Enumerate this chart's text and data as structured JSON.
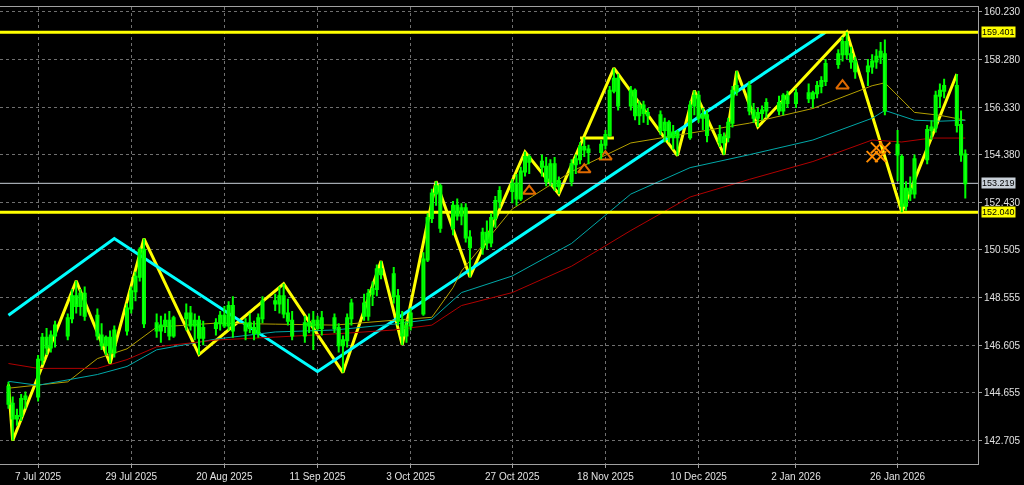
{
  "chart_data": {
    "type": "candlestick",
    "color": "#00ff00",
    "x": [
      "2025-06-30",
      "2025-07-01",
      "2025-07-02",
      "2025-07-03",
      "2025-07-04",
      "2025-07-07",
      "2025-07-08",
      "2025-07-09",
      "2025-07-10",
      "2025-07-11",
      "2025-07-14",
      "2025-07-15",
      "2025-07-16",
      "2025-07-17",
      "2025-07-18",
      "2025-07-21",
      "2025-07-22",
      "2025-07-23",
      "2025-07-24",
      "2025-07-25",
      "2025-07-28",
      "2025-07-29",
      "2025-07-30",
      "2025-07-31",
      "2025-08-01",
      "2025-08-04",
      "2025-08-05",
      "2025-08-06",
      "2025-08-07",
      "2025-08-08",
      "2025-08-11",
      "2025-08-12",
      "2025-08-13",
      "2025-08-14",
      "2025-08-15",
      "2025-08-18",
      "2025-08-19",
      "2025-08-20",
      "2025-08-21",
      "2025-08-22",
      "2025-08-25",
      "2025-08-26",
      "2025-08-27",
      "2025-08-28",
      "2025-08-29",
      "2025-09-01",
      "2025-09-02",
      "2025-09-03",
      "2025-09-04",
      "2025-09-05",
      "2025-09-08",
      "2025-09-09",
      "2025-09-10",
      "2025-09-11",
      "2025-09-12",
      "2025-09-15",
      "2025-09-16",
      "2025-09-17",
      "2025-09-18",
      "2025-09-19",
      "2025-09-22",
      "2025-09-23",
      "2025-09-24",
      "2025-09-25",
      "2025-09-26",
      "2025-09-29",
      "2025-09-30",
      "2025-10-01",
      "2025-10-02",
      "2025-10-03",
      "2025-10-06",
      "2025-10-07",
      "2025-10-08",
      "2025-10-09",
      "2025-10-10",
      "2025-10-13",
      "2025-10-14",
      "2025-10-15",
      "2025-10-16",
      "2025-10-17",
      "2025-10-20",
      "2025-10-21",
      "2025-10-22",
      "2025-10-23",
      "2025-10-24",
      "2025-10-27",
      "2025-10-28",
      "2025-10-29",
      "2025-10-30",
      "2025-10-31",
      "2025-11-03",
      "2025-11-04",
      "2025-11-05",
      "2025-11-06",
      "2025-11-07",
      "2025-11-10",
      "2025-11-11",
      "2025-11-12",
      "2025-11-13",
      "2025-11-14",
      "2025-11-17",
      "2025-11-18",
      "2025-11-19",
      "2025-11-20",
      "2025-11-21",
      "2025-11-24",
      "2025-11-25",
      "2025-11-26",
      "2025-11-27",
      "2025-11-28",
      "2025-12-01",
      "2025-12-02",
      "2025-12-03",
      "2025-12-04",
      "2025-12-05",
      "2025-12-08",
      "2025-12-09",
      "2025-12-10",
      "2025-12-11",
      "2025-12-12",
      "2025-12-15",
      "2025-12-16",
      "2025-12-17",
      "2025-12-18",
      "2025-12-19",
      "2025-12-22",
      "2025-12-23",
      "2025-12-24",
      "2025-12-25",
      "2025-12-26",
      "2025-12-29",
      "2025-12-30",
      "2025-12-31",
      "2026-01-02",
      "2026-01-05",
      "2026-01-06",
      "2026-01-07",
      "2026-01-08",
      "2026-01-09",
      "2026-01-12",
      "2026-01-13",
      "2026-01-14",
      "2026-01-15",
      "2026-01-16",
      "2026-01-19",
      "2026-01-20",
      "2026-01-21",
      "2026-01-22",
      "2026-01-23",
      "2026-01-26",
      "2026-01-27",
      "2026-01-28",
      "2026-01-29",
      "2026-01-30",
      "2026-02-02",
      "2026-02-03",
      "2026-02-04",
      "2026-02-05",
      "2026-02-06",
      "2026-02-09",
      "2026-02-10",
      "2026-02-11"
    ],
    "ohlc": [
      [
        144.9,
        145.1,
        144.0,
        144.2
      ],
      [
        144.2,
        144.5,
        142.7,
        143.6
      ],
      [
        143.6,
        144.0,
        143.3,
        143.7
      ],
      [
        143.7,
        144.6,
        143.5,
        144.4
      ],
      [
        144.4,
        144.7,
        144.0,
        144.5
      ],
      [
        144.5,
        146.2,
        144.3,
        146.0
      ],
      [
        146.0,
        147.1,
        145.8,
        146.9
      ],
      [
        146.9,
        147.3,
        146.2,
        146.5
      ],
      [
        146.5,
        147.2,
        146.3,
        147.0
      ],
      [
        147.0,
        147.6,
        146.5,
        147.4
      ],
      [
        147.0,
        147.9,
        146.8,
        147.7
      ],
      [
        147.7,
        148.9,
        147.5,
        148.6
      ],
      [
        148.6,
        149.23,
        147.9,
        148.2
      ],
      [
        148.2,
        148.9,
        147.8,
        148.7
      ],
      [
        148.7,
        149.0,
        147.6,
        147.8
      ],
      [
        147.8,
        148.1,
        146.8,
        147.0
      ],
      [
        147.0,
        147.5,
        146.4,
        146.6
      ],
      [
        146.6,
        147.0,
        146.2,
        146.9
      ],
      [
        146.9,
        147.2,
        145.85,
        146.3
      ],
      [
        146.3,
        147.4,
        146.1,
        147.2
      ],
      [
        147.2,
        148.3,
        147.0,
        148.1
      ],
      [
        148.1,
        149.0,
        147.9,
        148.8
      ],
      [
        148.8,
        149.6,
        148.4,
        149.4
      ],
      [
        149.4,
        150.6,
        149.2,
        150.5
      ],
      [
        150.5,
        150.96,
        147.3,
        147.5
      ],
      [
        147.5,
        147.9,
        146.9,
        147.2
      ],
      [
        147.2,
        147.8,
        146.7,
        147.4
      ],
      [
        147.4,
        147.9,
        147.1,
        147.6
      ],
      [
        147.6,
        148.0,
        146.8,
        147.0
      ],
      [
        147.0,
        147.8,
        146.9,
        147.7
      ],
      [
        147.7,
        148.3,
        147.2,
        147.9
      ],
      [
        147.9,
        148.2,
        147.2,
        147.4
      ],
      [
        147.4,
        147.9,
        146.8,
        147.6
      ],
      [
        147.6,
        147.8,
        146.21,
        146.9
      ],
      [
        146.9,
        147.6,
        146.6,
        147.3
      ],
      [
        147.3,
        147.7,
        147.0,
        147.5
      ],
      [
        147.5,
        148.0,
        147.2,
        147.8
      ],
      [
        147.8,
        148.2,
        147.3,
        147.4
      ],
      [
        147.4,
        148.4,
        147.2,
        148.2
      ],
      [
        148.2,
        148.6,
        146.9,
        147.2
      ],
      [
        147.2,
        147.7,
        146.8,
        147.5
      ],
      [
        147.5,
        147.9,
        147.1,
        147.3
      ],
      [
        147.3,
        147.6,
        146.8,
        147.1
      ],
      [
        147.1,
        147.9,
        146.9,
        147.7
      ],
      [
        147.7,
        148.6,
        147.5,
        148.4
      ],
      [
        148.4,
        148.7,
        148.0,
        148.3
      ],
      [
        148.3,
        149.0,
        147.9,
        148.6
      ],
      [
        148.6,
        149.11,
        147.7,
        147.9
      ],
      [
        147.9,
        148.5,
        147.4,
        147.6
      ],
      [
        147.6,
        148.0,
        146.8,
        147.0
      ],
      [
        147.0,
        147.8,
        146.7,
        147.5
      ],
      [
        147.5,
        147.9,
        147.1,
        147.4
      ],
      [
        147.4,
        148.0,
        146.4,
        147.6
      ],
      [
        147.6,
        147.8,
        147.2,
        147.3
      ],
      [
        147.3,
        148.0,
        147.0,
        147.7
      ],
      [
        147.7,
        147.9,
        147.1,
        147.3
      ],
      [
        147.3,
        147.5,
        146.3,
        146.6
      ],
      [
        146.6,
        147.0,
        145.48,
        146.8
      ],
      [
        146.8,
        147.9,
        146.5,
        147.7
      ],
      [
        147.7,
        148.5,
        147.4,
        148.3
      ],
      [
        148.3,
        148.7,
        147.6,
        147.8
      ],
      [
        147.8,
        148.9,
        147.6,
        148.7
      ],
      [
        148.7,
        149.2,
        148.2,
        148.9
      ],
      [
        148.9,
        149.9,
        148.6,
        149.7
      ],
      [
        149.7,
        150.04,
        149.3,
        149.5
      ],
      [
        149.5,
        149.8,
        148.3,
        148.6
      ],
      [
        148.6,
        148.9,
        147.4,
        147.6
      ],
      [
        147.6,
        148.0,
        146.61,
        147.0
      ],
      [
        147.0,
        147.6,
        146.7,
        147.4
      ],
      [
        147.4,
        148.1,
        147.2,
        147.9
      ],
      [
        147.9,
        150.4,
        147.8,
        150.1
      ],
      [
        150.1,
        152.0,
        150.0,
        151.8
      ],
      [
        151.8,
        153.0,
        151.6,
        152.8
      ],
      [
        152.8,
        153.3,
        152.3,
        153.1
      ],
      [
        153.1,
        153.2,
        151.2,
        151.4
      ],
      [
        151.4,
        152.5,
        151.1,
        152.3
      ],
      [
        152.3,
        152.6,
        151.7,
        151.9
      ],
      [
        151.9,
        152.4,
        151.5,
        152.2
      ],
      [
        152.2,
        152.4,
        150.8,
        151.0
      ],
      [
        151.0,
        151.3,
        149.39,
        150.6
      ],
      [
        150.6,
        151.4,
        150.3,
        151.2
      ],
      [
        151.2,
        151.7,
        150.5,
        150.8
      ],
      [
        150.8,
        152.0,
        150.6,
        151.8
      ],
      [
        151.8,
        152.7,
        151.4,
        152.5
      ],
      [
        152.5,
        153.1,
        152.2,
        152.9
      ],
      [
        152.9,
        153.4,
        152.4,
        153.2
      ],
      [
        153.2,
        153.6,
        152.3,
        152.6
      ],
      [
        152.6,
        153.9,
        152.5,
        153.7
      ],
      [
        153.7,
        154.51,
        153.5,
        154.3
      ],
      [
        154.3,
        154.4,
        153.6,
        154.1
      ],
      [
        154.1,
        154.4,
        153.5,
        153.9
      ],
      [
        153.9,
        154.3,
        153.1,
        153.3
      ],
      [
        153.3,
        154.2,
        153.1,
        154.0
      ],
      [
        154.0,
        154.3,
        152.9,
        153.1
      ],
      [
        153.1,
        153.5,
        152.78,
        153.3
      ],
      [
        153.3,
        154.2,
        153.1,
        154.0
      ],
      [
        154.0,
        154.4,
        153.6,
        154.2
      ],
      [
        154.2,
        154.9,
        154.0,
        154.7
      ],
      [
        154.7,
        155.1,
        154.3,
        154.6
      ],
      [
        154.6,
        154.8,
        154.0,
        154.5
      ],
      [
        154.5,
        155.0,
        154.2,
        154.8
      ],
      [
        154.8,
        155.4,
        154.6,
        155.2
      ],
      [
        155.2,
        157.2,
        155.1,
        157.0
      ],
      [
        157.0,
        157.93,
        156.9,
        157.5
      ],
      [
        157.5,
        157.7,
        156.2,
        156.4
      ],
      [
        156.4,
        157.2,
        156.2,
        157.0
      ],
      [
        157.0,
        157.1,
        155.8,
        156.0
      ],
      [
        156.0,
        156.6,
        155.6,
        156.4
      ],
      [
        156.4,
        156.6,
        155.7,
        156.1
      ],
      [
        156.1,
        156.3,
        155.6,
        156.0
      ],
      [
        156.0,
        156.2,
        155.2,
        155.4
      ],
      [
        155.4,
        155.9,
        154.9,
        155.7
      ],
      [
        155.7,
        155.8,
        154.9,
        155.1
      ],
      [
        155.1,
        155.6,
        154.6,
        155.3
      ],
      [
        155.3,
        155.4,
        154.35,
        155.1
      ],
      [
        155.1,
        156.6,
        155.0,
        156.4
      ],
      [
        156.4,
        157.01,
        156.0,
        156.8
      ],
      [
        156.8,
        157.0,
        155.7,
        155.9
      ],
      [
        155.9,
        156.3,
        155.4,
        156.0
      ],
      [
        156.0,
        156.2,
        154.9,
        155.2
      ],
      [
        155.2,
        155.6,
        154.7,
        154.9
      ],
      [
        154.9,
        155.3,
        154.39,
        155.1
      ],
      [
        155.1,
        155.9,
        154.9,
        155.7
      ],
      [
        155.7,
        157.2,
        155.5,
        157.0
      ],
      [
        157.0,
        157.81,
        156.8,
        157.2
      ],
      [
        157.2,
        157.4,
        156.0,
        156.2
      ],
      [
        156.2,
        156.5,
        155.7,
        155.9
      ],
      [
        155.9,
        156.3,
        155.52,
        156.1
      ],
      [
        156.1,
        156.4,
        155.8,
        156.2
      ],
      [
        156.2,
        156.7,
        155.9,
        156.5
      ],
      [
        156.5,
        156.8,
        156.0,
        156.2
      ],
      [
        156.2,
        156.9,
        156.0,
        156.8
      ],
      [
        156.8,
        157.0,
        156.3,
        156.5
      ],
      [
        156.5,
        157.1,
        156.3,
        156.9
      ],
      [
        156.9,
        157.3,
        156.5,
        156.7
      ],
      [
        156.7,
        157.0,
        156.3,
        156.9
      ],
      [
        156.9,
        157.4,
        156.7,
        157.2
      ],
      [
        157.2,
        157.6,
        156.9,
        157.4
      ],
      [
        157.4,
        158.3,
        157.2,
        158.1
      ],
      [
        158.1,
        158.7,
        157.9,
        158.5
      ],
      [
        158.5,
        159.2,
        158.2,
        159.0
      ],
      [
        159.0,
        159.4,
        158.3,
        158.5
      ],
      [
        158.5,
        158.8,
        157.9,
        158.2
      ],
      [
        158.2,
        158.4,
        157.5,
        157.8
      ],
      [
        157.8,
        158.3,
        157.2,
        158.0
      ],
      [
        158.0,
        158.5,
        157.7,
        158.2
      ],
      [
        158.2,
        158.7,
        157.9,
        158.4
      ],
      [
        158.4,
        159.0,
        158.1,
        158.6
      ],
      [
        158.5,
        159.1,
        156.0,
        156.2
      ],
      [
        154.8,
        155.4,
        153.3,
        154.4
      ],
      [
        154.3,
        154.4,
        152.04,
        152.3
      ],
      [
        152.3,
        153.3,
        152.1,
        153.0
      ],
      [
        153.0,
        153.5,
        152.5,
        152.8
      ],
      [
        152.8,
        154.4,
        152.6,
        154.2
      ],
      [
        154.2,
        155.6,
        154.0,
        155.4
      ],
      [
        155.4,
        155.8,
        155.0,
        155.5
      ],
      [
        155.5,
        157.0,
        155.3,
        156.8
      ],
      [
        156.8,
        157.3,
        156.3,
        157.0
      ],
      [
        157.0,
        157.5,
        156.7,
        157.2
      ],
      [
        157.2,
        157.69,
        155.3,
        155.6
      ],
      [
        155.6,
        156.2,
        154.1,
        154.4
      ],
      [
        154.4,
        154.6,
        152.6,
        153.219
      ]
    ],
    "series": [
      {
        "type": "line",
        "color": "#ffff00",
        "x": [
          "2025-06-30",
          "2025-07-01",
          "2025-07-16",
          "2025-07-24",
          "2025-08-01",
          "2025-08-14",
          "2025-09-03",
          "2025-09-17",
          "2025-09-26",
          "2025-10-01",
          "2025-10-09",
          "2025-10-17",
          "2025-10-30",
          "2025-11-07",
          "2025-11-20",
          "2025-12-05",
          "2025-12-09",
          "2025-12-16",
          "2025-12-19",
          "2025-12-24",
          "2026-01-14",
          "2026-01-27",
          "2026-02-09"
        ],
        "values": [
          145.0,
          142.7,
          149.23,
          145.85,
          150.96,
          146.21,
          149.11,
          145.48,
          150.04,
          146.61,
          153.3,
          149.39,
          154.51,
          152.78,
          157.93,
          154.35,
          157.01,
          154.39,
          157.81,
          155.52,
          159.4,
          152.04,
          157.69
        ]
      },
      {
        "type": "line",
        "color": "#00ffff",
        "x": [
          "2025-06-30",
          "2025-07-25",
          "2025-09-11",
          "2026-01-09"
        ],
        "values": [
          147.82,
          150.96,
          145.52,
          159.4
        ]
      },
      {
        "type": "line",
        "color": "#ffff00",
        "x": [
          "2025-11-12",
          "2025-11-20"
        ],
        "values": [
          155.07,
          155.07
        ]
      },
      {
        "type": "line",
        "color": "#b4a000",
        "x": [
          "2025-06-30",
          "2025-07-14",
          "2025-07-21",
          "2025-07-28",
          "2025-08-04",
          "2025-08-18",
          "2025-09-01",
          "2025-09-15",
          "2025-09-29",
          "2025-10-08",
          "2025-10-13",
          "2025-10-15",
          "2025-10-27",
          "2025-11-10",
          "2025-11-24",
          "2025-12-08",
          "2025-12-22",
          "2026-01-06",
          "2026-01-20",
          "2026-01-23",
          "2026-01-30",
          "2026-02-05",
          "2026-02-11"
        ],
        "values": [
          144.84,
          145.1,
          146.05,
          146.45,
          147.34,
          147.5,
          147.46,
          147.42,
          147.62,
          147.74,
          148.95,
          149.63,
          152.17,
          153.7,
          154.87,
          155.27,
          155.68,
          156.28,
          157.21,
          157.33,
          156.12,
          156.0,
          155.8
        ]
      },
      {
        "type": "line",
        "color": "#00a8a8",
        "x": [
          "2025-06-30",
          "2025-07-07",
          "2025-07-21",
          "2025-07-28",
          "2025-08-04",
          "2025-08-18",
          "2025-09-01",
          "2025-09-15",
          "2025-09-29",
          "2025-10-08",
          "2025-10-15",
          "2025-10-27",
          "2025-11-10",
          "2025-11-24",
          "2025-12-08",
          "2025-12-22",
          "2026-01-06",
          "2026-01-20",
          "2026-01-23",
          "2026-01-30",
          "2026-02-05",
          "2026-02-11"
        ],
        "values": [
          145.12,
          144.96,
          145.4,
          145.73,
          146.41,
          146.85,
          147.14,
          147.22,
          147.46,
          147.66,
          148.75,
          149.43,
          150.76,
          152.78,
          153.86,
          154.39,
          154.99,
          155.88,
          156.2,
          155.8,
          155.76,
          155.8
        ]
      },
      {
        "type": "line",
        "color": "#b00000",
        "x": [
          "2025-06-30",
          "2025-07-07",
          "2025-07-21",
          "2025-07-28",
          "2025-08-04",
          "2025-08-18",
          "2025-09-01",
          "2025-09-15",
          "2025-09-29",
          "2025-10-08",
          "2025-10-15",
          "2025-10-27",
          "2025-11-10",
          "2025-11-24",
          "2025-12-08",
          "2025-12-22",
          "2026-01-06",
          "2026-01-20",
          "2026-01-27",
          "2026-02-03",
          "2026-02-11"
        ],
        "values": [
          145.85,
          145.65,
          145.65,
          146.01,
          146.53,
          146.81,
          146.93,
          147.06,
          147.22,
          147.42,
          148.22,
          148.75,
          149.83,
          151.29,
          152.66,
          153.38,
          154.11,
          154.99,
          154.91,
          155.07,
          155.07
        ]
      },
      {
        "type": "scatter",
        "marker": "triangle",
        "color": "#e06a00",
        "x": [
          "2025-10-31",
          "2025-11-13",
          "2025-11-18",
          "2026-01-13"
        ],
        "values": [
          152.9,
          153.78,
          154.31,
          157.21
        ]
      },
      {
        "type": "scatter",
        "marker": "cross",
        "color": "#ff8c00",
        "x": [
          "2026-01-20",
          "2026-01-21",
          "2026-01-22",
          "2026-01-23"
        ],
        "values": [
          154.31,
          154.67,
          154.31,
          154.67
        ]
      }
    ],
    "ref_lines": [
      {
        "axis": "y",
        "value": 159.401,
        "label": "159.401",
        "color": "#ffff00"
      },
      {
        "axis": "y",
        "value": 152.04,
        "label": "152.040",
        "color": "#ffff00"
      },
      {
        "axis": "y",
        "value": 153.219,
        "label": "153.219",
        "color": "#c8d0d8"
      }
    ],
    "xlim": [
      "2025-06-28",
      "2026-02-14"
    ],
    "xticks": [
      {
        "value": "2025-07-07",
        "label": "7 Jul 2025"
      },
      {
        "value": "2025-07-29",
        "label": "29 Jul 2025"
      },
      {
        "value": "2025-08-20",
        "label": "20 Aug 2025"
      },
      {
        "value": "2025-09-11",
        "label": "11 Sep 2025"
      },
      {
        "value": "2025-10-03",
        "label": "3 Oct 2025"
      },
      {
        "value": "2025-10-27",
        "label": "27 Oct 2025"
      },
      {
        "value": "2025-11-18",
        "label": "18 Nov 2025"
      },
      {
        "value": "2025-12-10",
        "label": "10 Dec 2025"
      },
      {
        "value": "2026-01-02",
        "label": "2 Jan 2026"
      },
      {
        "value": "2026-01-26",
        "label": "26 Jan 2026"
      }
    ],
    "ylim": [
      141.74,
      160.43
    ],
    "yticks": [
      {
        "value": 142.705,
        "label": "142.705"
      },
      {
        "value": 144.655,
        "label": "144.655"
      },
      {
        "value": 146.605,
        "label": "146.605"
      },
      {
        "value": 148.555,
        "label": "148.555"
      },
      {
        "value": 150.505,
        "label": "150.505"
      },
      {
        "value": 152.43,
        "label": "152.430"
      },
      {
        "value": 154.38,
        "label": "154.380"
      },
      {
        "value": 156.33,
        "label": "156.330"
      },
      {
        "value": 158.28,
        "label": "158.280"
      },
      {
        "value": 160.23,
        "label": "160.230"
      }
    ],
    "grid": true
  }
}
